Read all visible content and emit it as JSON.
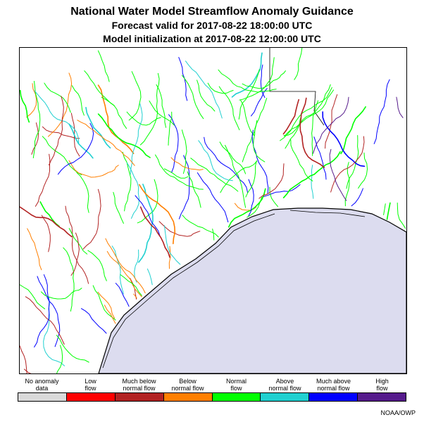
{
  "title": {
    "line1": "National Water Model Streamflow Anomaly Guidance",
    "line2": "Forecast valid for 2017-08-22 18:00:00 UTC",
    "line3": "Model initialization at 2017-08-22 12:00:00 UTC"
  },
  "legend": [
    {
      "label_top": "No anomaly",
      "label_bottom": "data",
      "color": "#d9d9d9"
    },
    {
      "label_top": "Low",
      "label_bottom": "flow",
      "color": "#ff0000"
    },
    {
      "label_top": "Much below",
      "label_bottom": "normal flow",
      "color": "#b22222"
    },
    {
      "label_top": "Below",
      "label_bottom": "normal flow",
      "color": "#ff7f00"
    },
    {
      "label_top": "Normal",
      "label_bottom": "flow",
      "color": "#00ff00"
    },
    {
      "label_top": "Above",
      "label_bottom": "normal flow",
      "color": "#20d0d0"
    },
    {
      "label_top": "Much above",
      "label_bottom": "normal flow",
      "color": "#0000ff"
    },
    {
      "label_top": "High",
      "label_bottom": "flow",
      "color": "#551a8b"
    }
  ],
  "credit": "NOAA/OWP",
  "map": {
    "water_color": "#dcdcef",
    "coast_color": "#000000"
  }
}
